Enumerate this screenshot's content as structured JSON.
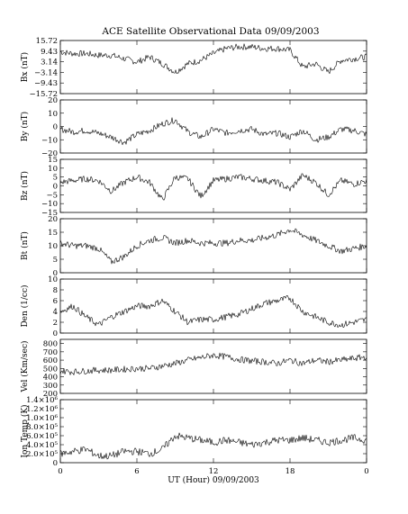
{
  "chart_data": {
    "type": "line",
    "title": "ACE Satellite Observational Data   09/09/2003",
    "xlabel": "UT (Hour)   09/09/2003",
    "x_range": [
      0,
      24
    ],
    "x_ticks": [
      "0",
      "6",
      "12",
      "18",
      "0"
    ],
    "panels": [
      {
        "id": "bx",
        "ylabel": "Bx (nT)",
        "ylim": [
          -15.72,
          15.72
        ],
        "y_ticks": [
          "15.72",
          "9.43",
          "3.14",
          "−3.14",
          "−9.43",
          "−15.72"
        ],
        "y_tick_values": [
          15.72,
          9.43,
          3.14,
          -3.14,
          -9.43,
          -15.72
        ],
        "x": [
          0,
          1,
          2,
          3,
          4,
          5,
          6,
          7,
          8,
          9,
          10,
          11,
          12,
          13,
          14,
          15,
          16,
          17,
          18,
          19,
          20,
          21,
          22,
          23,
          24
        ],
        "values": [
          9,
          8,
          8,
          7,
          7,
          5,
          3,
          6,
          2,
          -3,
          2,
          4,
          8,
          11,
          12,
          12,
          11,
          11,
          10,
          0,
          2,
          -3,
          4,
          5,
          6
        ]
      },
      {
        "id": "by",
        "ylabel": "By (nT)",
        "ylim": [
          -20,
          20
        ],
        "y_ticks": [
          "20",
          "10",
          "0",
          "−10",
          "−20"
        ],
        "y_tick_values": [
          20,
          10,
          0,
          -10,
          -20
        ],
        "x": [
          0,
          1,
          2,
          3,
          4,
          5,
          6,
          7,
          8,
          9,
          10,
          11,
          12,
          13,
          14,
          15,
          16,
          17,
          18,
          19,
          20,
          21,
          22,
          23,
          24
        ],
        "values": [
          -2,
          -4,
          -3,
          -5,
          -8,
          -12,
          -6,
          -3,
          2,
          5,
          -4,
          -8,
          -2,
          -5,
          -3,
          -2,
          -6,
          -5,
          -8,
          -3,
          -10,
          -8,
          -2,
          -3,
          -6
        ]
      },
      {
        "id": "bz",
        "ylabel": "Bz (nT)",
        "ylim": [
          -15,
          15
        ],
        "y_ticks": [
          "15",
          "10",
          "5",
          "0",
          "−5",
          "−10",
          "−15"
        ],
        "y_tick_values": [
          15,
          10,
          5,
          0,
          -5,
          -10,
          -15
        ],
        "x": [
          0,
          1,
          2,
          3,
          4,
          5,
          6,
          7,
          8,
          9,
          10,
          11,
          12,
          13,
          14,
          15,
          16,
          17,
          18,
          19,
          20,
          21,
          22,
          23,
          24
        ],
        "values": [
          2,
          3,
          4,
          3,
          -3,
          2,
          5,
          2,
          -8,
          5,
          4,
          -6,
          3,
          4,
          5,
          4,
          3,
          2,
          -2,
          6,
          2,
          -5,
          3,
          1,
          3
        ]
      },
      {
        "id": "bt",
        "ylabel": "Bt (nT)",
        "ylim": [
          0,
          20
        ],
        "y_ticks": [
          "20",
          "15",
          "10",
          "5",
          "0"
        ],
        "y_tick_values": [
          20,
          15,
          10,
          5,
          0
        ],
        "x": [
          0,
          1,
          2,
          3,
          4,
          5,
          6,
          7,
          8,
          9,
          10,
          11,
          12,
          13,
          14,
          15,
          16,
          17,
          18,
          19,
          20,
          21,
          22,
          23,
          24
        ],
        "values": [
          11,
          10,
          10,
          9,
          4,
          6,
          10,
          12,
          13,
          11,
          12,
          11,
          11,
          11,
          12,
          12,
          13,
          14,
          16,
          14,
          12,
          10,
          8,
          9,
          10
        ]
      },
      {
        "id": "den",
        "ylabel": "Den (1/cc)",
        "ylim": [
          0,
          10
        ],
        "y_ticks": [
          "10",
          "8",
          "6",
          "4",
          "2",
          "0"
        ],
        "y_tick_values": [
          10,
          8,
          6,
          4,
          2,
          0
        ],
        "x": [
          0,
          1,
          2,
          3,
          4,
          5,
          6,
          7,
          8,
          9,
          10,
          11,
          12,
          13,
          14,
          15,
          16,
          17,
          18,
          19,
          20,
          21,
          22,
          23,
          24
        ],
        "values": [
          4,
          5,
          3,
          1.5,
          3,
          4,
          5,
          5,
          6,
          4,
          2,
          2.5,
          2.5,
          3,
          3.5,
          4.5,
          5.5,
          6,
          6.5,
          4,
          3,
          2,
          1.5,
          2,
          2.5
        ]
      },
      {
        "id": "vel",
        "ylabel": "Vel (Km/sec)",
        "ylim": [
          200,
          850
        ],
        "y_ticks": [
          "800",
          "700",
          "600",
          "500",
          "400",
          "300",
          "200"
        ],
        "y_tick_values": [
          800,
          700,
          600,
          500,
          400,
          300,
          200
        ],
        "x": [
          0,
          1,
          2,
          3,
          4,
          5,
          6,
          7,
          8,
          9,
          10,
          11,
          12,
          13,
          14,
          15,
          16,
          17,
          18,
          19,
          20,
          21,
          22,
          23,
          24
        ],
        "values": [
          470,
          460,
          470,
          480,
          480,
          490,
          500,
          500,
          530,
          560,
          600,
          630,
          660,
          640,
          610,
          590,
          580,
          560,
          600,
          560,
          600,
          580,
          600,
          620,
          640
        ]
      },
      {
        "id": "temp",
        "ylabel": "Ion Temp (K)",
        "ylim": [
          0,
          1400000
        ],
        "y_ticks": [
          "1.4×10⁶",
          "1.2×10⁶",
          "1.0×10⁶",
          "8.0×10⁵",
          "6.0×10⁵",
          "4.0×10⁵",
          "2.0×10⁵",
          "0"
        ],
        "y_tick_values": [
          1400000,
          1200000,
          1000000,
          800000,
          600000,
          400000,
          200000,
          0
        ],
        "x": [
          0,
          1,
          2,
          3,
          4,
          5,
          6,
          7,
          8,
          9,
          10,
          11,
          12,
          13,
          14,
          15,
          16,
          17,
          18,
          19,
          20,
          21,
          22,
          23,
          24
        ],
        "values": [
          200000,
          250000,
          300000,
          150000,
          150000,
          250000,
          250000,
          200000,
          300000,
          600000,
          550000,
          500000,
          450000,
          500000,
          450000,
          400000,
          450000,
          500000,
          500000,
          550000,
          500000,
          450000,
          500000,
          550000,
          500000
        ]
      }
    ]
  }
}
